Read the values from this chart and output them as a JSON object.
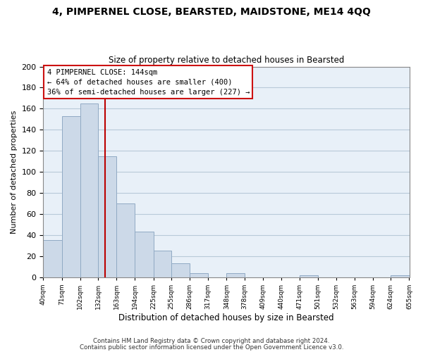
{
  "title1": "4, PIMPERNEL CLOSE, BEARSTED, MAIDSTONE, ME14 4QQ",
  "title2": "Size of property relative to detached houses in Bearsted",
  "xlabel": "Distribution of detached houses by size in Bearsted",
  "ylabel": "Number of detached properties",
  "bar_edges": [
    40,
    71,
    102,
    132,
    163,
    194,
    225,
    255,
    286,
    317,
    348,
    378,
    409,
    440,
    471,
    501,
    532,
    563,
    594,
    624,
    655
  ],
  "bar_heights": [
    35,
    153,
    165,
    115,
    70,
    43,
    25,
    13,
    4,
    0,
    4,
    0,
    0,
    0,
    2,
    0,
    0,
    0,
    0,
    2
  ],
  "bar_color": "#ccd9e8",
  "bar_edgecolor": "#90aac4",
  "property_line_x": 144,
  "property_line_color": "#bb0000",
  "ylim": [
    0,
    200
  ],
  "yticks": [
    0,
    20,
    40,
    60,
    80,
    100,
    120,
    140,
    160,
    180,
    200
  ],
  "annotation_line1": "4 PIMPERNEL CLOSE: 144sqm",
  "annotation_line2": "← 64% of detached houses are smaller (400)",
  "annotation_line3": "36% of semi-detached houses are larger (227) →",
  "footnote1": "Contains HM Land Registry data © Crown copyright and database right 2024.",
  "footnote2": "Contains public sector information licensed under the Open Government Licence v3.0.",
  "tick_labels": [
    "40sqm",
    "71sqm",
    "102sqm",
    "132sqm",
    "163sqm",
    "194sqm",
    "225sqm",
    "255sqm",
    "286sqm",
    "317sqm",
    "348sqm",
    "378sqm",
    "409sqm",
    "440sqm",
    "471sqm",
    "501sqm",
    "532sqm",
    "563sqm",
    "594sqm",
    "624sqm",
    "655sqm"
  ],
  "grid_color": "#b8cad8",
  "fig_background": "#ffffff",
  "plot_background": "#e8f0f8"
}
